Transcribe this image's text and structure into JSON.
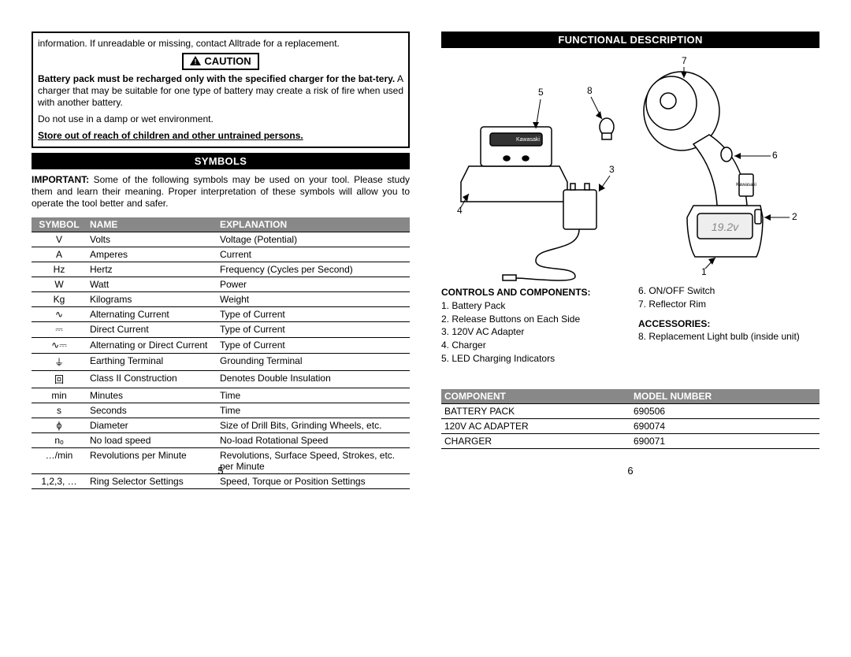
{
  "left": {
    "top_line": "information. If unreadable or missing, contact Alltrade for a replacement.",
    "caution_label": "CAUTION",
    "caution_body1_bold": "Battery pack must be recharged only with the specified charger for the bat-",
    "caution_body1_rest": "tery.",
    "caution_body2": " A charger that may be suitable for one type of battery may create a risk of fire when used with another battery.",
    "caution_line2": "Do not use in a damp or wet environment.",
    "caution_line3": "Store out of reach of children and other untrained persons.",
    "symbols_header": "SYMBOLS",
    "symbols_intro_lead": "IMPORTANT:",
    "symbols_intro": " Some of the following symbols may be used on your tool. Please study them and learn their meaning. Proper interpretation of these symbols will allow you to operate the tool better and safer.",
    "thead": {
      "c1": "SYMBOL",
      "c2": "NAME",
      "c3": "EXPLANATION"
    },
    "rows": [
      {
        "s": "V",
        "n": "Volts",
        "e": "Voltage (Potential)"
      },
      {
        "s": "A",
        "n": "Amperes",
        "e": "Current"
      },
      {
        "s": "Hz",
        "n": "Hertz",
        "e": "Frequency (Cycles per Second)"
      },
      {
        "s": "W",
        "n": "Watt",
        "e": "Power"
      },
      {
        "s": "Kg",
        "n": "Kilograms",
        "e": "Weight"
      },
      {
        "s": "∿",
        "n": "Alternating Current",
        "e": "Type of Current"
      },
      {
        "s": "⎓",
        "n": "Direct Current",
        "e": "Type of Current"
      },
      {
        "s": "∿⎓",
        "n": "Alternating or Direct Current",
        "e": "Type of Current"
      },
      {
        "s": "⏚",
        "n": "Earthing Terminal",
        "e": "Grounding Terminal"
      },
      {
        "s": "回",
        "n": "Class II Construction",
        "e": "Denotes Double Insulation"
      },
      {
        "s": "min",
        "n": "Minutes",
        "e": "Time"
      },
      {
        "s": "s",
        "n": "Seconds",
        "e": "Time"
      },
      {
        "s": "ϕ",
        "n": "Diameter",
        "e": "Size of Drill Bits, Grinding Wheels, etc."
      },
      {
        "s": "nₒ",
        "n": "No load speed",
        "e": "No-load Rotational Speed"
      },
      {
        "s": "…/min",
        "n": "Revolutions per Minute",
        "e": "Revolutions, Surface Speed, Strokes, etc. per Minute"
      },
      {
        "s": "1,2,3, …",
        "n": "Ring Selector Settings",
        "e": "Speed, Torque or Position Settings"
      }
    ],
    "pagenum": "5"
  },
  "right": {
    "func_header": "FUNCTIONAL DESCRIPTION",
    "controls_head": "CONTROLS AND COMPONENTS:",
    "controls_left": [
      "1. Battery Pack",
      "2. Release Buttons on Each Side",
      "3. 120V AC Adapter",
      "4. Charger",
      "5. LED Charging Indicators"
    ],
    "controls_right_a": [
      "6. ON/OFF Switch",
      "7. Reflector Rim"
    ],
    "accessories_head": "ACCESSORIES:",
    "accessories": [
      "8. Replacement Light bulb (inside unit)"
    ],
    "comp_head": {
      "c1": "COMPONENT",
      "c2": "MODEL NUMBER"
    },
    "comp_rows": [
      {
        "c": "BATTERY PACK",
        "m": "690506"
      },
      {
        "c": "120V AC ADAPTER",
        "m": "690074"
      },
      {
        "c": "CHARGER",
        "m": "690071"
      }
    ],
    "diagram_labels": [
      "1",
      "2",
      "3",
      "4",
      "5",
      "6",
      "7",
      "8"
    ],
    "pagenum": "6"
  }
}
